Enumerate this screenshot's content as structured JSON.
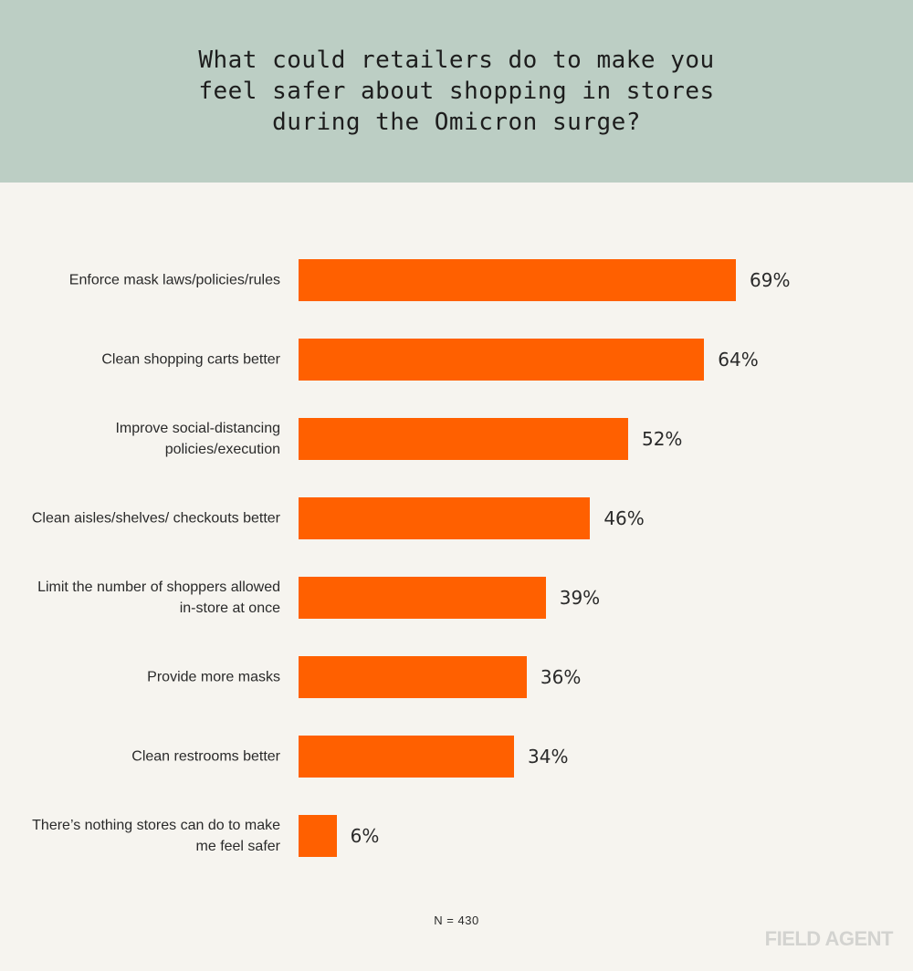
{
  "chart_data": {
    "type": "bar",
    "orientation": "horizontal",
    "title": "What could retailers do to make you feel safer about shopping in stores during the Omicron surge?",
    "categories": [
      "Enforce mask laws/policies/rules",
      "Clean shopping carts better",
      "Improve social-distancing policies/execution",
      "Clean aisles/shelves/ checkouts better",
      "Limit the number of shoppers allowed in-store at once",
      "Provide more masks",
      "Clean restrooms better",
      "There’s nothing stores can do to make me feel safer"
    ],
    "values": [
      69,
      64,
      52,
      46,
      39,
      36,
      34,
      6
    ],
    "value_labels": [
      "69%",
      "64%",
      "52%",
      "46%",
      "39%",
      "36%",
      "34%",
      "6%"
    ],
    "xlim": [
      0,
      100
    ],
    "grid": false,
    "legend": "none",
    "bar_color": "#ff6000",
    "note": "N = 430"
  },
  "branding": {
    "logo_text": "FIELD AGENT"
  },
  "colors": {
    "header_bg": "#bccec4",
    "page_bg": "#f6f4ef"
  }
}
